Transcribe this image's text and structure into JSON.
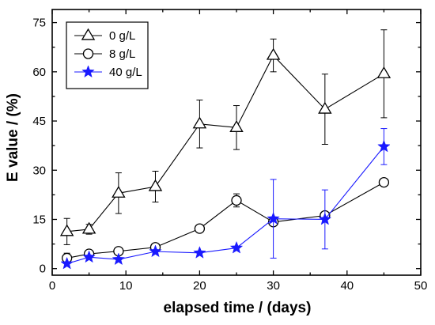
{
  "chart_data": {
    "type": "line",
    "title": "",
    "xlabel": "elapsed time / (days)",
    "ylabel": "E value / (%)",
    "xlim": [
      0,
      50
    ],
    "ylim": [
      -2,
      79
    ],
    "xticks": [
      0,
      10,
      20,
      30,
      40,
      50
    ],
    "yticks": [
      0,
      15,
      30,
      45,
      60,
      75
    ],
    "grid": false,
    "legend_position": "top-left",
    "series": [
      {
        "name": "0 g/L",
        "marker": "triangle",
        "color": "#000000",
        "x": [
          2,
          5,
          9,
          14,
          20,
          25,
          30,
          37,
          45
        ],
        "y": [
          11.3,
          12.0,
          23.0,
          25.0,
          44.1,
          43.0,
          65.0,
          48.6,
          59.4
        ],
        "err": [
          4.0,
          1.5,
          6.2,
          4.7,
          7.3,
          6.7,
          5.0,
          10.7,
          13.4
        ]
      },
      {
        "name": "8 g/L",
        "marker": "circle",
        "color": "#000000",
        "x": [
          2,
          5,
          9,
          14,
          20,
          25,
          30,
          37,
          45
        ],
        "y": [
          3.2,
          4.5,
          5.3,
          6.5,
          12.2,
          20.8,
          14.2,
          16.2,
          26.3
        ],
        "err": [
          1.5,
          1.0,
          1.0,
          1.0,
          0,
          2.0,
          1.0,
          0,
          0
        ]
      },
      {
        "name": "40 g/L",
        "marker": "star",
        "color": "#1a1aff",
        "x": [
          2,
          5,
          9,
          14,
          20,
          25,
          30,
          37,
          45
        ],
        "y": [
          1.5,
          3.5,
          2.8,
          5.2,
          4.8,
          6.3,
          15.2,
          15.0,
          37.2
        ],
        "err": [
          0,
          0,
          0,
          0,
          0,
          0,
          12.0,
          9.0,
          5.5
        ]
      }
    ]
  }
}
